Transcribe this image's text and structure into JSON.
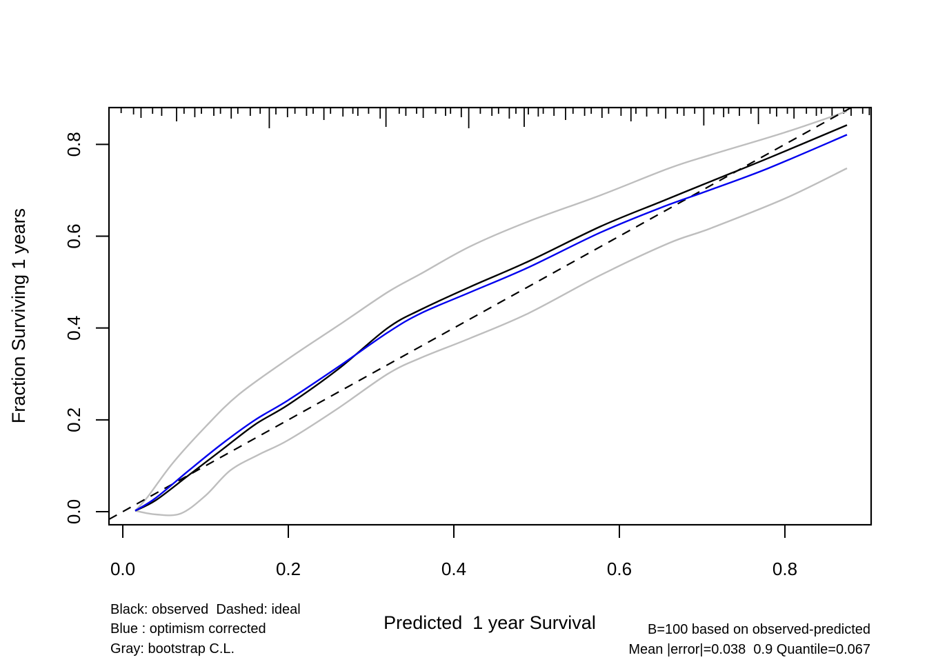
{
  "figure": {
    "x_axis_label": "Predicted  1 year Survival",
    "y_axis_label": "Fraction Surviving 1 years",
    "x_tick_labels": [
      "0.0",
      "0.2",
      "0.4",
      "0.6",
      "0.8"
    ],
    "y_tick_labels": [
      "0.0",
      "0.2",
      "0.4",
      "0.6",
      "0.8"
    ],
    "legend_lines": [
      "Black: observed  Dashed: ideal",
      "Blue : optimism corrected",
      "Gray: bootstrap C.L."
    ],
    "stats_lines": [
      "B=100 based on observed-predicted",
      "Mean |error|=0.038  0.9 Quantile=0.067"
    ]
  },
  "stats": {
    "B": 100,
    "mean_abs_error": 0.038,
    "quantile_0_9": 0.067
  },
  "colors": {
    "observed": "#000000",
    "ideal": "#000000",
    "optimism_corrected": "#0000EE",
    "bootstrap_cl": "#BEBEBE"
  },
  "chart_data": {
    "type": "line",
    "title": "",
    "xlabel": "Predicted  1 year Survival",
    "ylabel": "Fraction Surviving 1 years",
    "xlim": [
      -0.0167,
      0.9042
    ],
    "ylim": [
      -0.0285,
      0.8801
    ],
    "x_ticks": [
      0.0,
      0.2,
      0.4,
      0.6,
      0.8
    ],
    "y_ticks": [
      0.0,
      0.2,
      0.4,
      0.6,
      0.8
    ],
    "grid": false,
    "legend_position": "bottom-left-text",
    "series": [
      {
        "name": "bootstrap-cl-upper",
        "color": "#BEBEBE",
        "dash": false,
        "x": [
          0.015,
          0.03,
          0.06,
          0.1,
          0.14,
          0.2,
          0.26,
          0.32,
          0.36,
          0.42,
          0.49,
          0.577,
          0.66,
          0.71,
          0.8,
          0.875
        ],
        "y": [
          0.002,
          0.032,
          0.105,
          0.185,
          0.255,
          0.333,
          0.405,
          0.478,
          0.518,
          0.578,
          0.632,
          0.689,
          0.748,
          0.777,
          0.826,
          0.872
        ]
      },
      {
        "name": "bootstrap-cl-lower",
        "color": "#BEBEBE",
        "dash": false,
        "x": [
          0.015,
          0.04,
          0.07,
          0.1,
          0.13,
          0.165,
          0.2,
          0.26,
          0.32,
          0.36,
          0.42,
          0.49,
          0.577,
          0.66,
          0.71,
          0.8,
          0.875
        ],
        "y": [
          0.002,
          -0.006,
          -0.004,
          0.035,
          0.09,
          0.125,
          0.156,
          0.225,
          0.3,
          0.335,
          0.378,
          0.432,
          0.515,
          0.585,
          0.617,
          0.682,
          0.748
        ]
      },
      {
        "name": "ideal",
        "color": "#000000",
        "dash": true,
        "x": [
          -0.0167,
          0.8801
        ],
        "y": [
          -0.0167,
          0.8801
        ]
      },
      {
        "name": "observed",
        "color": "#000000",
        "dash": false,
        "x": [
          0.015,
          0.04,
          0.08,
          0.12,
          0.16,
          0.2,
          0.26,
          0.32,
          0.36,
          0.42,
          0.49,
          0.577,
          0.65,
          0.71,
          0.78,
          0.875
        ],
        "y": [
          0.002,
          0.025,
          0.08,
          0.135,
          0.19,
          0.233,
          0.31,
          0.4,
          0.44,
          0.49,
          0.545,
          0.621,
          0.675,
          0.719,
          0.77,
          0.842
        ]
      },
      {
        "name": "optimism-corrected",
        "color": "#0000EE",
        "dash": false,
        "x": [
          0.015,
          0.04,
          0.08,
          0.12,
          0.16,
          0.2,
          0.26,
          0.32,
          0.36,
          0.42,
          0.49,
          0.577,
          0.65,
          0.71,
          0.78,
          0.875
        ],
        "y": [
          0.002,
          0.03,
          0.09,
          0.148,
          0.2,
          0.243,
          0.315,
          0.39,
          0.432,
          0.478,
          0.532,
          0.608,
          0.662,
          0.701,
          0.748,
          0.821
        ]
      }
    ],
    "rug": [
      [
        -0.002,
        8
      ],
      [
        0.013,
        10
      ],
      [
        0.022,
        15
      ],
      [
        0.036,
        9
      ],
      [
        0.047,
        12
      ],
      [
        0.065,
        20
      ],
      [
        0.074,
        9
      ],
      [
        0.087,
        14
      ],
      [
        0.095,
        9
      ],
      [
        0.11,
        12
      ],
      [
        0.118,
        9
      ],
      [
        0.131,
        16
      ],
      [
        0.139,
        9
      ],
      [
        0.154,
        12
      ],
      [
        0.166,
        9
      ],
      [
        0.177,
        30
      ],
      [
        0.185,
        10
      ],
      [
        0.199,
        14
      ],
      [
        0.208,
        9
      ],
      [
        0.222,
        12
      ],
      [
        0.23,
        9
      ],
      [
        0.243,
        18
      ],
      [
        0.251,
        9
      ],
      [
        0.266,
        13
      ],
      [
        0.278,
        9
      ],
      [
        0.284,
        12
      ],
      [
        0.297,
        9
      ],
      [
        0.311,
        16
      ],
      [
        0.318,
        28
      ],
      [
        0.334,
        9
      ],
      [
        0.342,
        12
      ],
      [
        0.355,
        9
      ],
      [
        0.363,
        15
      ],
      [
        0.378,
        9
      ],
      [
        0.39,
        12
      ],
      [
        0.396,
        9
      ],
      [
        0.409,
        14
      ],
      [
        0.418,
        30
      ],
      [
        0.432,
        9
      ],
      [
        0.446,
        12
      ],
      [
        0.454,
        9
      ],
      [
        0.467,
        16
      ],
      [
        0.475,
        9
      ],
      [
        0.485,
        28
      ],
      [
        0.49,
        10
      ],
      [
        0.502,
        13
      ],
      [
        0.508,
        9
      ],
      [
        0.521,
        12
      ],
      [
        0.535,
        18
      ],
      [
        0.544,
        9
      ],
      [
        0.558,
        12
      ],
      [
        0.566,
        9
      ],
      [
        0.579,
        15
      ],
      [
        0.587,
        9
      ],
      [
        0.602,
        12
      ],
      [
        0.614,
        20
      ],
      [
        0.62,
        9
      ],
      [
        0.633,
        13
      ],
      [
        0.647,
        9
      ],
      [
        0.656,
        16
      ],
      [
        0.67,
        9
      ],
      [
        0.678,
        12
      ],
      [
        0.691,
        9
      ],
      [
        0.702,
        26
      ],
      [
        0.714,
        10
      ],
      [
        0.726,
        14
      ],
      [
        0.732,
        9
      ],
      [
        0.745,
        12
      ],
      [
        0.759,
        9
      ],
      [
        0.768,
        24
      ],
      [
        0.782,
        9
      ],
      [
        0.79,
        13
      ],
      [
        0.803,
        9
      ],
      [
        0.811,
        16
      ],
      [
        0.826,
        9
      ],
      [
        0.838,
        12
      ],
      [
        0.844,
        9
      ],
      [
        0.857,
        14
      ],
      [
        0.871,
        9
      ],
      [
        0.88,
        12
      ],
      [
        0.894,
        9
      ],
      [
        0.902,
        11
      ]
    ]
  }
}
